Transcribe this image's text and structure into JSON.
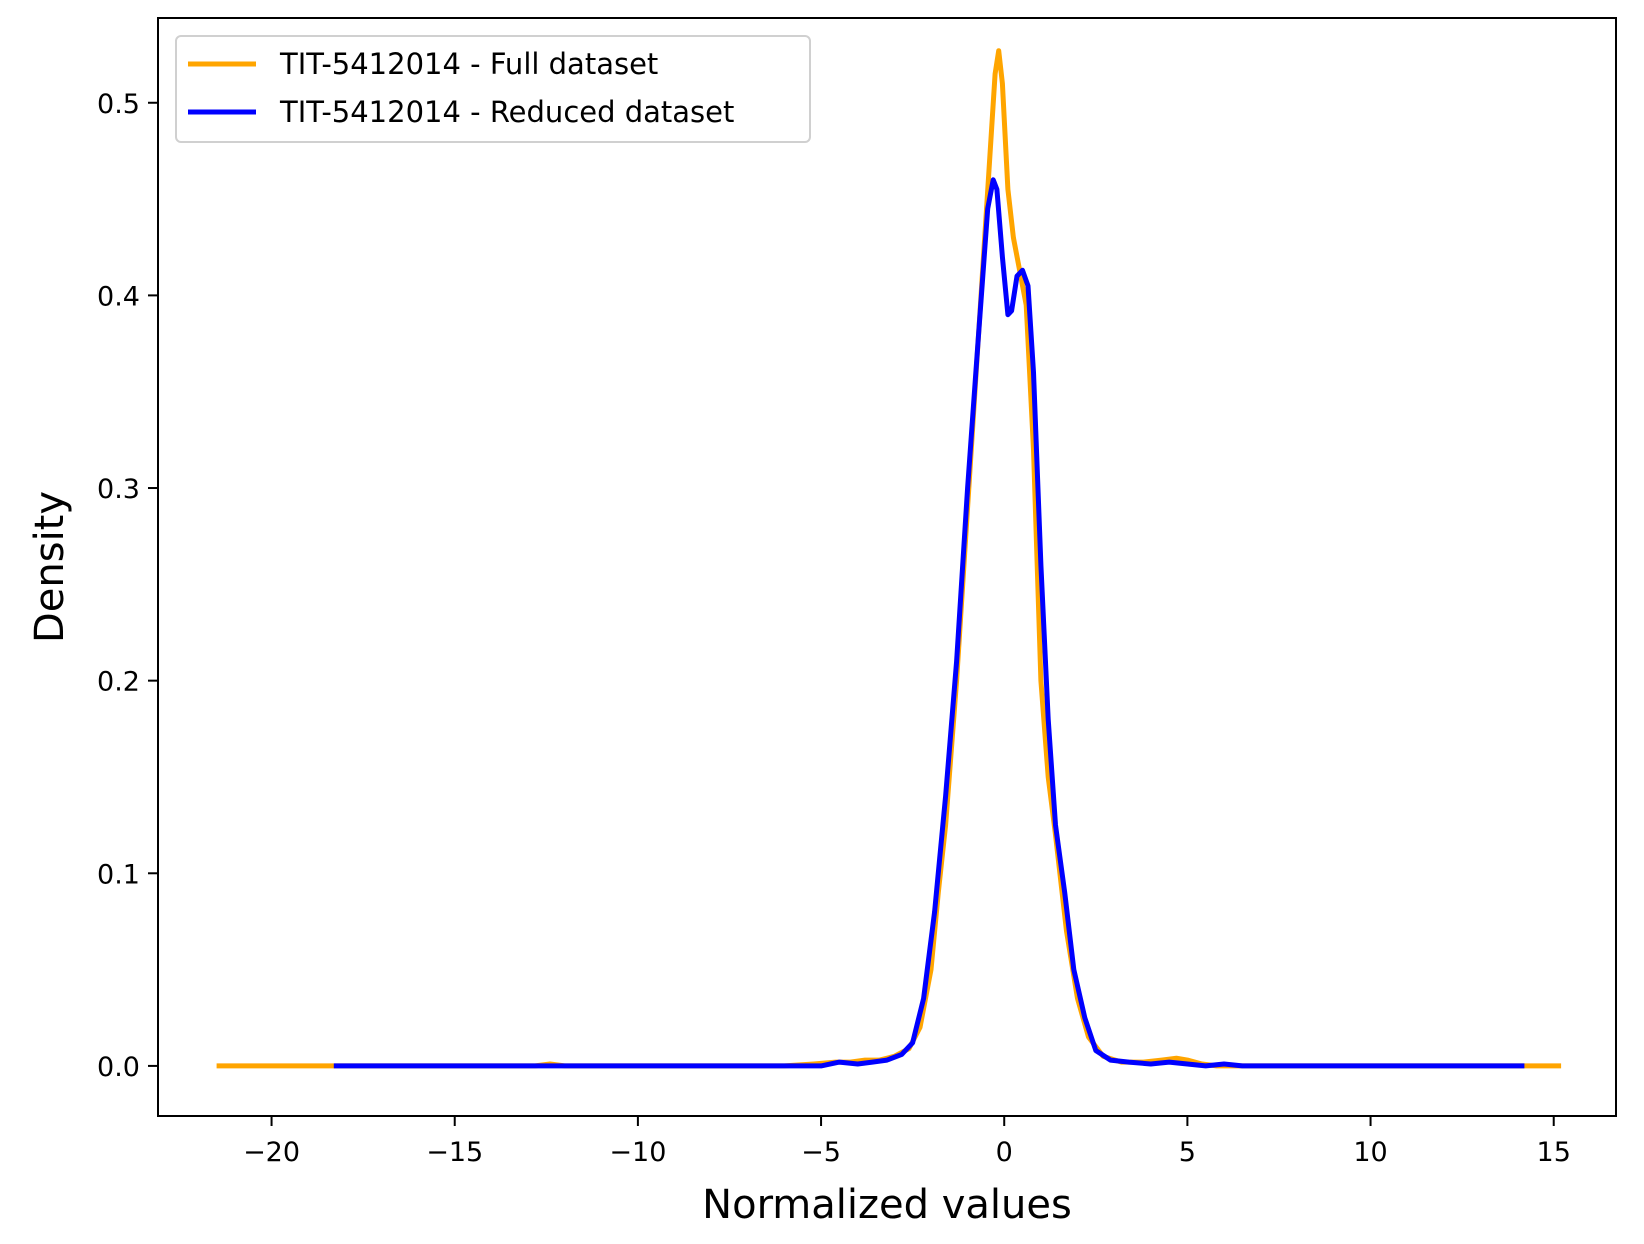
{
  "chart_data": {
    "type": "line",
    "title": "",
    "xlabel": "Normalized values",
    "ylabel": "Density",
    "xlim": [
      -23.1,
      16.7
    ],
    "ylim": [
      -0.026,
      0.544
    ],
    "xticks": [
      -20,
      -15,
      -10,
      -5,
      0,
      5,
      10,
      15
    ],
    "xtick_labels": [
      "−20",
      "−15",
      "−10",
      "−5",
      "0",
      "5",
      "10",
      "15"
    ],
    "yticks": [
      0.0,
      0.1,
      0.2,
      0.3,
      0.4,
      0.5
    ],
    "ytick_labels": [
      "0.0",
      "0.1",
      "0.2",
      "0.3",
      "0.4",
      "0.5"
    ],
    "grid": false,
    "legend_position": "upper-left",
    "series": [
      {
        "name": "TIT-5412014 - Full dataset",
        "color": "#FFA500",
        "x": [
          -21.5,
          -18.0,
          -15.0,
          -12.8,
          -12.4,
          -12.0,
          -10.0,
          -8.0,
          -6.0,
          -5.2,
          -4.6,
          -4.2,
          -3.8,
          -3.4,
          -3.0,
          -2.6,
          -2.3,
          -2.0,
          -1.8,
          -1.6,
          -1.3,
          -1.0,
          -0.7,
          -0.4,
          -0.25,
          -0.15,
          -0.05,
          0.1,
          0.25,
          0.4,
          0.6,
          0.8,
          1.0,
          1.2,
          1.4,
          1.7,
          2.0,
          2.3,
          2.7,
          3.2,
          3.8,
          4.3,
          4.7,
          5.0,
          5.4,
          5.8,
          6.2,
          7.0,
          9.0,
          11.0,
          13.0,
          15.2
        ],
        "y": [
          0.0,
          0.0,
          0.0,
          0.0,
          0.001,
          0.0,
          0.0,
          0.0,
          0.0,
          0.001,
          0.002,
          0.002,
          0.003,
          0.003,
          0.005,
          0.009,
          0.02,
          0.05,
          0.09,
          0.125,
          0.2,
          0.29,
          0.38,
          0.47,
          0.515,
          0.527,
          0.51,
          0.455,
          0.43,
          0.415,
          0.395,
          0.32,
          0.2,
          0.15,
          0.12,
          0.07,
          0.035,
          0.015,
          0.005,
          0.002,
          0.002,
          0.003,
          0.004,
          0.003,
          0.001,
          0.0,
          0.0,
          0.0,
          0.0,
          0.0,
          0.0,
          0.0
        ]
      },
      {
        "name": "TIT-5412014 - Reduced dataset",
        "color": "#0000FF",
        "x": [
          -18.3,
          -15.0,
          -12.0,
          -10.0,
          -8.0,
          -6.0,
          -5.0,
          -4.5,
          -4.0,
          -3.6,
          -3.2,
          -2.8,
          -2.5,
          -2.2,
          -1.9,
          -1.6,
          -1.3,
          -1.0,
          -0.7,
          -0.45,
          -0.3,
          -0.2,
          -0.05,
          0.1,
          0.2,
          0.35,
          0.5,
          0.65,
          0.8,
          1.0,
          1.2,
          1.4,
          1.65,
          1.9,
          2.2,
          2.5,
          2.9,
          3.4,
          4.0,
          4.5,
          5.0,
          5.5,
          6.0,
          6.5,
          8.0,
          10.0,
          12.0,
          14.2
        ],
        "y": [
          0.0,
          0.0,
          0.0,
          0.0,
          0.0,
          0.0,
          0.0,
          0.002,
          0.001,
          0.002,
          0.003,
          0.006,
          0.012,
          0.035,
          0.08,
          0.14,
          0.21,
          0.3,
          0.38,
          0.445,
          0.46,
          0.455,
          0.42,
          0.39,
          0.392,
          0.41,
          0.413,
          0.405,
          0.36,
          0.26,
          0.18,
          0.125,
          0.09,
          0.05,
          0.025,
          0.008,
          0.003,
          0.002,
          0.001,
          0.002,
          0.001,
          0.0,
          0.001,
          0.0,
          0.0,
          0.0,
          0.0,
          0.0
        ]
      }
    ]
  }
}
